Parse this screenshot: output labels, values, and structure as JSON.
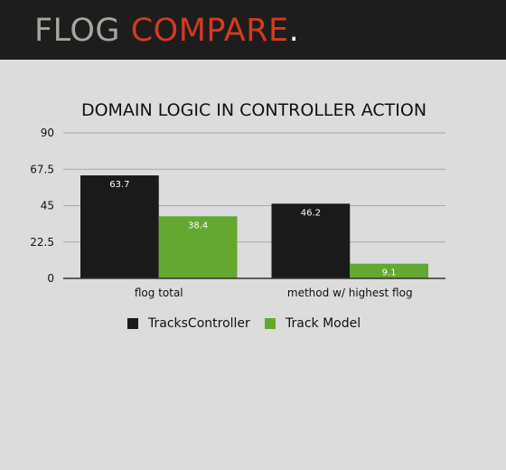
{
  "header": {
    "title_part1": "FLOG",
    "title_part2": "COMPARE",
    "title_dot": "."
  },
  "colors": {
    "header_bg": "#1d1d1d",
    "brand_gray": "#a9a49c",
    "brand_red": "#d23a22",
    "page_bg": "#dcdcdc"
  },
  "chart_data": {
    "type": "bar",
    "title": "DOMAIN LOGIC IN CONTROLLER ACTION",
    "categories": [
      "flog total",
      "method w/ highest flog"
    ],
    "series": [
      {
        "name": "TracksController",
        "values": [
          63.7,
          46.2
        ],
        "color": "#1a1a1a",
        "labels": [
          "63.7",
          "46.2"
        ]
      },
      {
        "name": "Track Model",
        "values": [
          38.4,
          9.1
        ],
        "color": "#64a832",
        "labels": [
          "38.4",
          "9.1"
        ]
      }
    ],
    "yticks": [
      0,
      22.5,
      45,
      67.5,
      90
    ],
    "ytick_labels": [
      "0",
      "22.5",
      "45",
      "67.5",
      "90"
    ],
    "ylim": [
      0,
      90
    ],
    "grid": true,
    "legend_position": "bottom"
  }
}
